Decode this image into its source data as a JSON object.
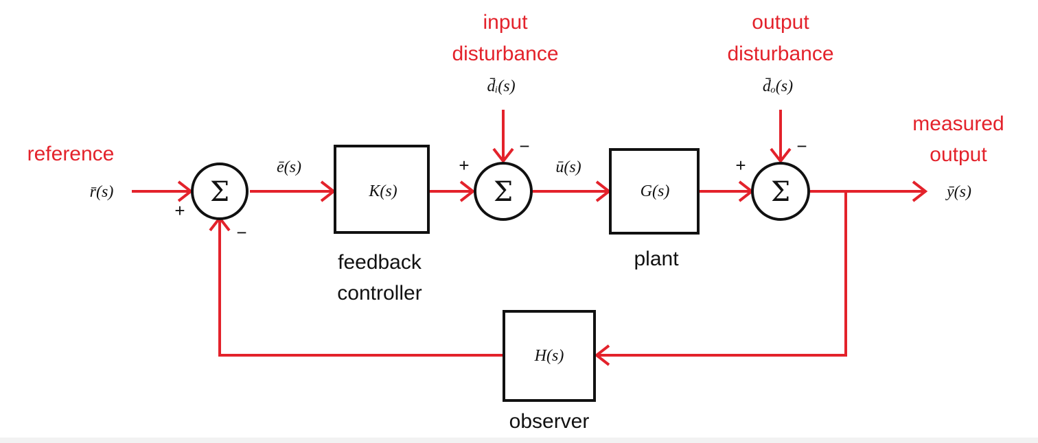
{
  "labels": {
    "reference": "reference",
    "input_disturbance_1": "input",
    "input_disturbance_2": "disturbance",
    "output_disturbance_1": "output",
    "output_disturbance_2": "disturbance",
    "measured_output_1": "measured",
    "measured_output_2": "output",
    "feedback_controller_1": "feedback",
    "feedback_controller_2": "controller",
    "plant": "plant",
    "observer": "observer"
  },
  "signals": {
    "r": "r̄(s)",
    "e": "ē(s)",
    "u": "ū(s)",
    "di": "d̄ᵢ(s)",
    "do": "d̄ₒ(s)",
    "y": "ȳ(s)"
  },
  "blocks": {
    "K": "K(s)",
    "G": "G(s)",
    "H": "H(s)"
  },
  "sum_symbol": "Σ",
  "signs": {
    "s1_plus": "+",
    "s1_minus": "−",
    "s2_plus": "+",
    "s2_minus": "−",
    "s3_plus": "+",
    "s3_minus": "−"
  },
  "colors": {
    "signal": "#e3222b",
    "block": "#111111"
  }
}
